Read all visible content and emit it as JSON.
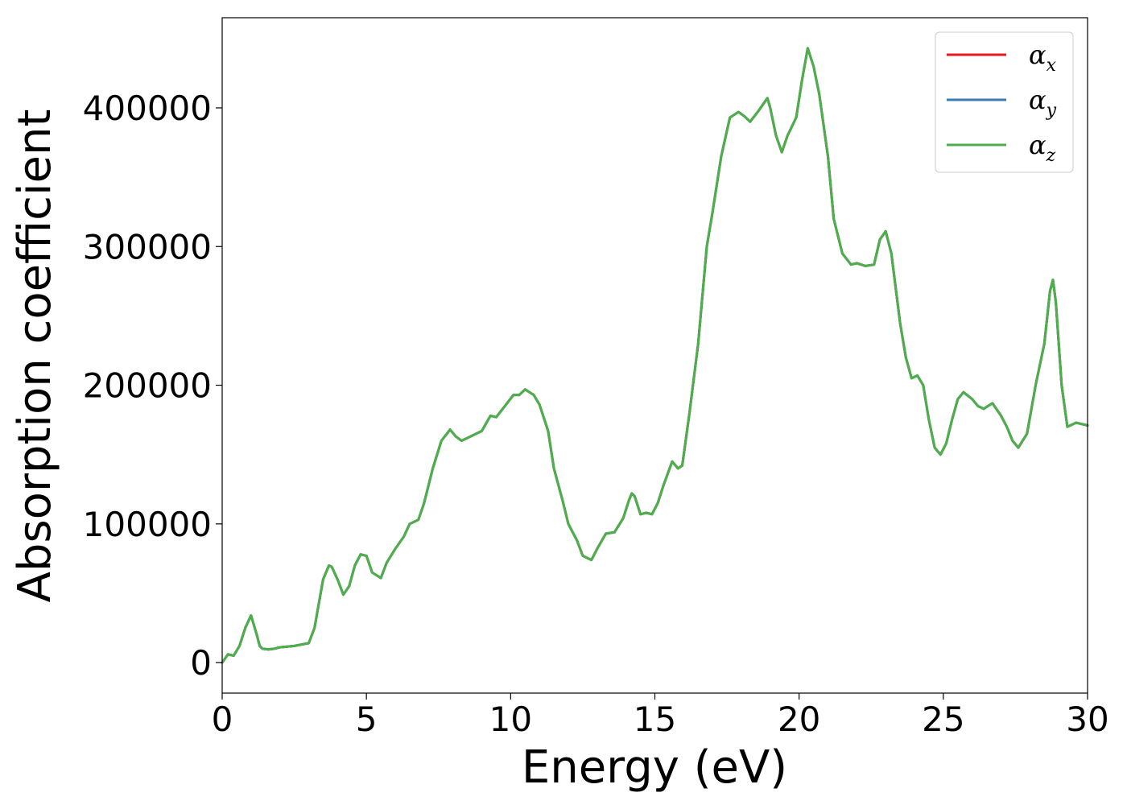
{
  "chart_data": {
    "type": "line",
    "xlabel": "Energy (eV)",
    "ylabel": "Absorption coefficient",
    "xlim": [
      0,
      30
    ],
    "ylim": [
      -22000,
      465000
    ],
    "xticks": [
      0,
      5,
      10,
      15,
      20,
      25,
      30
    ],
    "xtick_labels": [
      "0",
      "5",
      "10",
      "15",
      "20",
      "25",
      "30"
    ],
    "yticks": [
      0,
      100000,
      200000,
      300000,
      400000
    ],
    "ytick_labels": [
      "0",
      "100000",
      "200000",
      "300000",
      "400000"
    ],
    "grid": false,
    "legend_position": "top-right",
    "x": [
      0,
      0.2,
      0.4,
      0.6,
      0.8,
      1.0,
      1.2,
      1.3,
      1.4,
      1.6,
      1.8,
      2.0,
      2.5,
      3.0,
      3.2,
      3.5,
      3.7,
      3.8,
      4.0,
      4.2,
      4.4,
      4.6,
      4.8,
      5.0,
      5.2,
      5.5,
      5.7,
      6.0,
      6.3,
      6.5,
      6.8,
      7.0,
      7.3,
      7.6,
      7.9,
      8.1,
      8.3,
      8.6,
      9.0,
      9.3,
      9.5,
      9.8,
      10.1,
      10.3,
      10.5,
      10.8,
      11.0,
      11.3,
      11.5,
      11.8,
      12.0,
      12.3,
      12.5,
      12.8,
      13.0,
      13.3,
      13.6,
      13.9,
      14.1,
      14.2,
      14.3,
      14.5,
      14.7,
      14.9,
      15.1,
      15.3,
      15.6,
      15.8,
      15.95,
      16.2,
      16.5,
      16.8,
      17.0,
      17.3,
      17.6,
      17.9,
      18.1,
      18.3,
      18.6,
      18.9,
      19.0,
      19.2,
      19.4,
      19.6,
      19.9,
      20.1,
      20.3,
      20.5,
      20.7,
      21.0,
      21.2,
      21.5,
      21.8,
      22.0,
      22.3,
      22.6,
      22.8,
      23.0,
      23.2,
      23.5,
      23.7,
      23.9,
      24.1,
      24.3,
      24.5,
      24.7,
      24.9,
      25.1,
      25.3,
      25.5,
      25.7,
      26.0,
      26.2,
      26.4,
      26.7,
      27.0,
      27.2,
      27.4,
      27.6,
      27.9,
      28.2,
      28.5,
      28.7,
      28.8,
      28.9,
      29.1,
      29.3,
      29.6,
      30.0
    ],
    "series": [
      {
        "name": "α_x",
        "color": "#e41a1c",
        "values": [
          0,
          6000,
          5000,
          12000,
          25000,
          34000,
          20000,
          12000,
          10000,
          9500,
          10000,
          11000,
          12000,
          14000,
          25000,
          60000,
          70000,
          69000,
          60000,
          49000,
          55000,
          70000,
          78000,
          77000,
          65000,
          61000,
          72000,
          82000,
          91000,
          100000,
          103000,
          115000,
          140000,
          160000,
          168000,
          163000,
          160000,
          163000,
          167000,
          178000,
          177000,
          185000,
          193000,
          193000,
          197000,
          193000,
          186000,
          167000,
          140000,
          117000,
          100000,
          88000,
          77000,
          74000,
          82000,
          93000,
          94000,
          104000,
          117000,
          122000,
          120000,
          107000,
          108000,
          107000,
          115000,
          128000,
          145000,
          140000,
          142000,
          180000,
          230000,
          300000,
          325000,
          365000,
          393000,
          397000,
          394000,
          390000,
          398000,
          407000,
          400000,
          380000,
          368000,
          380000,
          393000,
          420000,
          443000,
          430000,
          410000,
          365000,
          320000,
          295000,
          287000,
          288000,
          286000,
          287000,
          305000,
          311000,
          295000,
          245000,
          220000,
          205000,
          207000,
          200000,
          175000,
          155000,
          150000,
          158000,
          175000,
          190000,
          195000,
          190000,
          185000,
          183000,
          187000,
          178000,
          170000,
          160000,
          155000,
          165000,
          200000,
          230000,
          268000,
          276000,
          260000,
          200000,
          170000,
          173000,
          171000
        ]
      },
      {
        "name": "α_y",
        "color": "#377eb8",
        "values": [
          0,
          6000,
          5000,
          12000,
          25000,
          34000,
          20000,
          12000,
          10000,
          9500,
          10000,
          11000,
          12000,
          14000,
          25000,
          60000,
          70000,
          69000,
          60000,
          49000,
          55000,
          70000,
          78000,
          77000,
          65000,
          61000,
          72000,
          82000,
          91000,
          100000,
          103000,
          115000,
          140000,
          160000,
          168000,
          163000,
          160000,
          163000,
          167000,
          178000,
          177000,
          185000,
          193000,
          193000,
          197000,
          193000,
          186000,
          167000,
          140000,
          117000,
          100000,
          88000,
          77000,
          74000,
          82000,
          93000,
          94000,
          104000,
          117000,
          122000,
          120000,
          107000,
          108000,
          107000,
          115000,
          128000,
          145000,
          140000,
          142000,
          180000,
          230000,
          300000,
          325000,
          365000,
          393000,
          397000,
          394000,
          390000,
          398000,
          407000,
          400000,
          380000,
          368000,
          380000,
          393000,
          420000,
          443000,
          430000,
          410000,
          365000,
          320000,
          295000,
          287000,
          288000,
          286000,
          287000,
          305000,
          311000,
          295000,
          245000,
          220000,
          205000,
          207000,
          200000,
          175000,
          155000,
          150000,
          158000,
          175000,
          190000,
          195000,
          190000,
          185000,
          183000,
          187000,
          178000,
          170000,
          160000,
          155000,
          165000,
          200000,
          230000,
          268000,
          276000,
          260000,
          200000,
          170000,
          173000,
          171000
        ]
      },
      {
        "name": "α_z",
        "color": "#4daf4a",
        "values": [
          0,
          6000,
          5000,
          12000,
          25000,
          34000,
          20000,
          12000,
          10000,
          9500,
          10000,
          11000,
          12000,
          14000,
          25000,
          60000,
          70000,
          69000,
          60000,
          49000,
          55000,
          70000,
          78000,
          77000,
          65000,
          61000,
          72000,
          82000,
          91000,
          100000,
          103000,
          115000,
          140000,
          160000,
          168000,
          163000,
          160000,
          163000,
          167000,
          178000,
          177000,
          185000,
          193000,
          193000,
          197000,
          193000,
          186000,
          167000,
          140000,
          117000,
          100000,
          88000,
          77000,
          74000,
          82000,
          93000,
          94000,
          104000,
          117000,
          122000,
          120000,
          107000,
          108000,
          107000,
          115000,
          128000,
          145000,
          140000,
          142000,
          180000,
          230000,
          300000,
          325000,
          365000,
          393000,
          397000,
          394000,
          390000,
          398000,
          407000,
          400000,
          380000,
          368000,
          380000,
          393000,
          420000,
          443000,
          430000,
          410000,
          365000,
          320000,
          295000,
          287000,
          288000,
          286000,
          287000,
          305000,
          311000,
          295000,
          245000,
          220000,
          205000,
          207000,
          200000,
          175000,
          155000,
          150000,
          158000,
          175000,
          190000,
          195000,
          190000,
          185000,
          183000,
          187000,
          178000,
          170000,
          160000,
          155000,
          165000,
          200000,
          230000,
          268000,
          276000,
          260000,
          200000,
          170000,
          173000,
          171000
        ]
      }
    ],
    "legend": [
      {
        "symbol": "α",
        "subscript": "x",
        "color": "#e41a1c"
      },
      {
        "symbol": "α",
        "subscript": "y",
        "color": "#377eb8"
      },
      {
        "symbol": "α",
        "subscript": "z",
        "color": "#4daf4a"
      }
    ]
  }
}
